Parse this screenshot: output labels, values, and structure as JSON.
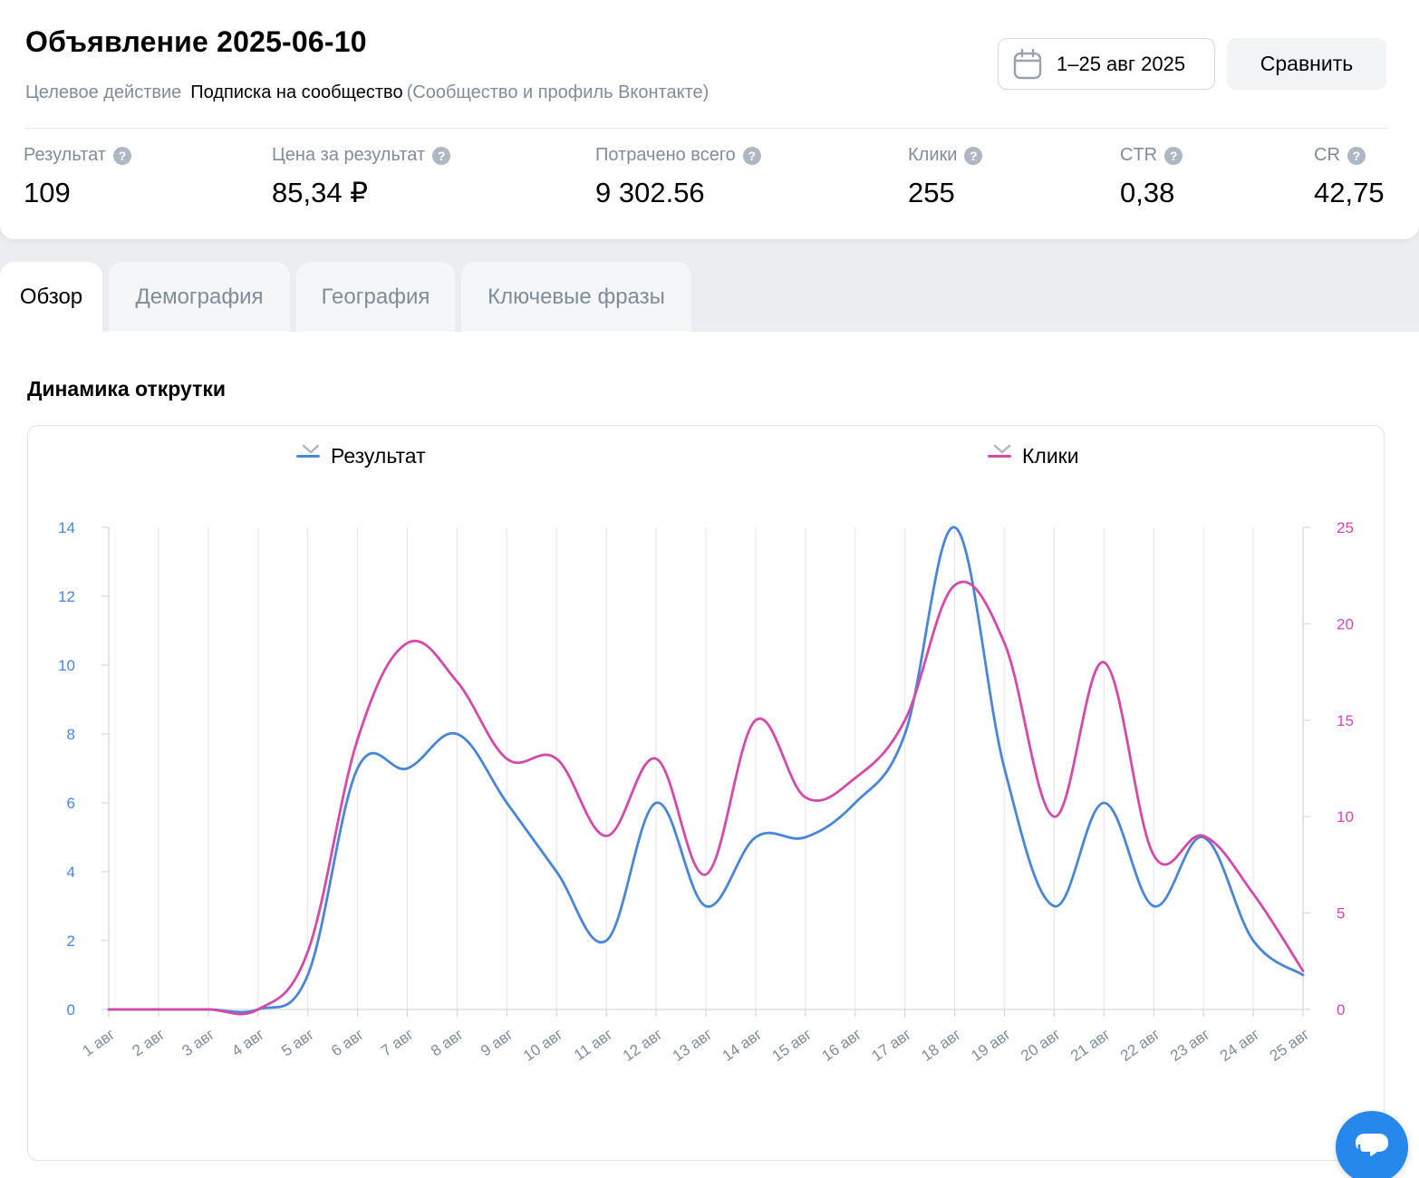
{
  "header": {
    "title": "Объявление 2025-06-10",
    "target_label": "Целевое действие",
    "target_value": "Подписка на сообщество",
    "target_note": "(Сообщество и профиль Вконтакте)",
    "date_range": "1–25 авг 2025",
    "compare_label": "Сравнить",
    "help_glyph": "?"
  },
  "metrics": [
    {
      "label": "Результат",
      "value": "109"
    },
    {
      "label": "Цена за результат",
      "value": "85,34 ₽"
    },
    {
      "label": "Потрачено всего",
      "value": "9 302.56"
    },
    {
      "label": "Клики",
      "value": "255"
    },
    {
      "label": "CTR",
      "value": "0,38"
    },
    {
      "label": "CR",
      "value": "42,75"
    }
  ],
  "tabs": [
    {
      "label": "Обзор",
      "active": true
    },
    {
      "label": "Демография",
      "active": false
    },
    {
      "label": "География",
      "active": false
    },
    {
      "label": "Ключевые фразы",
      "active": false
    }
  ],
  "section": {
    "title": "Динамика открутки"
  },
  "colors": {
    "results": "#4a86d8",
    "clicks": "#d54aa9",
    "grid": "#e6e8eb"
  },
  "chart_data": {
    "type": "line",
    "title": "Динамика открутки",
    "categories": [
      "1 авг",
      "2 авг",
      "3 авг",
      "4 авг",
      "5 авг",
      "6 авг",
      "7 авг",
      "8 авг",
      "9 авг",
      "10 авг",
      "11 авг",
      "12 авг",
      "13 авг",
      "14 авг",
      "15 авг",
      "16 авг",
      "17 авг",
      "18 авг",
      "19 авг",
      "20 авг",
      "21 авг",
      "22 авг",
      "23 авг",
      "24 авг",
      "25 авг"
    ],
    "series": [
      {
        "name": "Результат",
        "axis": "left",
        "color": "#4a86d8",
        "values": [
          0,
          0,
          0,
          0,
          1,
          7,
          7,
          8,
          6,
          4,
          2,
          6,
          3,
          5,
          5,
          6,
          8,
          14,
          7,
          3,
          6,
          3,
          5,
          2,
          1
        ]
      },
      {
        "name": "Клики",
        "axis": "right",
        "color": "#d54aa9",
        "values": [
          0,
          0,
          0,
          0,
          3,
          14,
          19,
          17,
          13,
          13,
          9,
          13,
          7,
          15,
          11,
          12,
          15,
          22,
          19,
          10,
          18,
          8,
          9,
          6,
          2
        ]
      }
    ],
    "y_left": {
      "min": 0,
      "max": 14,
      "ticks": [
        "0",
        "2",
        "4",
        "6",
        "8",
        "10",
        "12",
        "14"
      ]
    },
    "y_right": {
      "min": 0,
      "max": 25,
      "ticks": [
        "0",
        "5",
        "10",
        "15",
        "20",
        "25"
      ]
    },
    "legend": "top",
    "grid": true
  }
}
